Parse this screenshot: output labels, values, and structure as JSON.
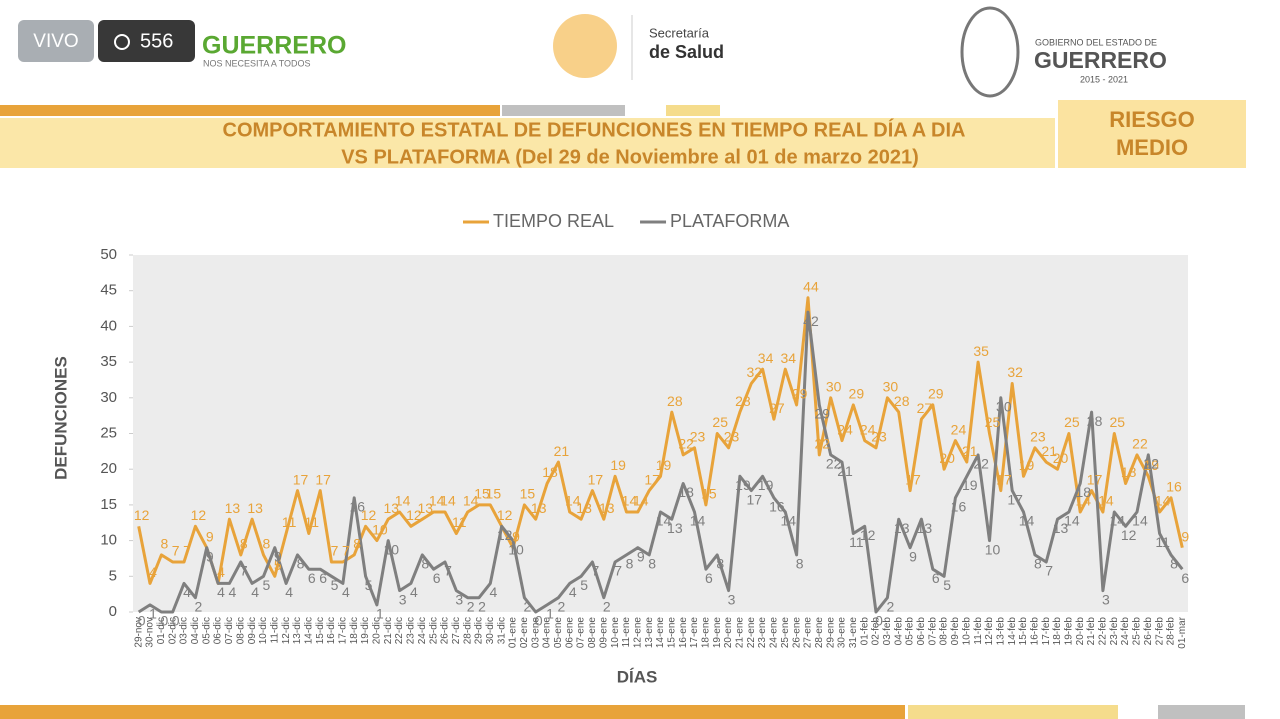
{
  "header": {
    "live": "VIVO",
    "viewers": "556",
    "brand": "GUERRERO",
    "brand_sub": "NOS NECESITA A TODOS",
    "secretaria": "Secretaría",
    "salud": "de Salud",
    "gobierno": "GOBIERNO DEL ESTADO DE",
    "estado": "GUERRERO",
    "periodo": "2015 - 2021",
    "riesgo": [
      "RIESGO",
      "MEDIO"
    ]
  },
  "chart_data": {
    "type": "line",
    "title": [
      "COMPORTAMIENTO ESTATAL DE DEFUNCIONES EN TIEMPO REAL DÍA A DIA",
      "VS PLATAFORMA   (Del 29 de Noviembre al 01 de marzo 2021)"
    ],
    "x_label": "DÍAS",
    "y_label": "DEFUNCIONES",
    "categories": [
      "29-nov",
      "30-nov",
      "01-dic",
      "02-dic",
      "03-dic",
      "04-dic",
      "05-dic",
      "06-dic",
      "07-dic",
      "08-dic",
      "09-dic",
      "10-dic",
      "11-dic",
      "12-dic",
      "13-dic",
      "14-dic",
      "15-dic",
      "16-dic",
      "17-dic",
      "18-dic",
      "19-dic",
      "20-dic",
      "21-dic",
      "22-dic",
      "23-dic",
      "24-dic",
      "25-dic",
      "26-dic",
      "27-dic",
      "28-dic",
      "29-dic",
      "30-dic",
      "31-dic",
      "01-ene",
      "02-ene",
      "03-ene",
      "04-ene",
      "05-ene",
      "06-ene",
      "07-ene",
      "08-ene",
      "09-ene",
      "10-ene",
      "11-ene",
      "12-ene",
      "13-ene",
      "14-ene",
      "15-ene",
      "16-ene",
      "17-ene",
      "18-ene",
      "19-ene",
      "20-ene",
      "21-ene",
      "22-ene",
      "23-ene",
      "24-ene",
      "25-ene",
      "26-ene",
      "27-ene",
      "28-ene",
      "29-ene",
      "30-ene",
      "31-ene",
      "01-feb",
      "02-feb",
      "03-feb",
      "04-feb",
      "05-feb",
      "06-feb",
      "07-feb",
      "08-feb",
      "09-feb",
      "10-feb",
      "11-feb",
      "12-feb",
      "13-feb",
      "14-feb",
      "15-feb",
      "16-feb",
      "17-feb",
      "18-feb",
      "19-feb",
      "20-feb",
      "21-feb",
      "22-feb",
      "23-feb",
      "24-feb",
      "25-feb",
      "26-feb",
      "27-feb",
      "28-feb",
      "01-mar"
    ],
    "series": [
      {
        "name": "TIEMPO REAL",
        "color": "#e8a33a",
        "values": [
          12,
          4,
          8,
          7,
          7,
          12,
          9,
          4,
          13,
          8,
          13,
          8,
          5,
          11,
          17,
          11,
          17,
          7,
          7,
          8,
          12,
          10,
          13,
          14,
          12,
          13,
          14,
          14,
          11,
          14,
          15,
          15,
          12,
          9,
          15,
          13,
          18,
          21,
          14,
          13,
          17,
          13,
          19,
          14,
          14,
          17,
          19,
          28,
          22,
          23,
          15,
          25,
          23,
          28,
          32,
          34,
          27,
          34,
          29,
          44,
          22,
          30,
          24,
          29,
          24,
          23,
          30,
          28,
          17,
          27,
          29,
          20,
          24,
          21,
          35,
          25,
          17,
          32,
          19,
          23,
          21,
          20,
          25,
          14,
          17,
          14,
          25,
          18,
          22,
          19,
          14,
          16,
          9
        ]
      },
      {
        "name": "PLATAFORMA",
        "color": "#7f7f7f",
        "values": [
          0,
          1,
          0,
          0,
          4,
          2,
          9,
          4,
          4,
          7,
          4,
          5,
          9,
          4,
          8,
          6,
          6,
          5,
          4,
          16,
          5,
          1,
          10,
          3,
          4,
          8,
          6,
          7,
          3,
          2,
          2,
          4,
          12,
          10,
          2,
          0,
          1,
          2,
          4,
          5,
          7,
          2,
          7,
          8,
          9,
          8,
          14,
          13,
          18,
          14,
          6,
          8,
          3,
          19,
          17,
          19,
          16,
          14,
          8,
          42,
          29,
          22,
          21,
          11,
          12,
          0,
          2,
          13,
          9,
          13,
          6,
          5,
          16,
          19,
          22,
          10,
          30,
          17,
          14,
          8,
          7,
          13,
          14,
          18,
          28,
          3,
          14,
          12,
          14,
          22,
          11,
          8,
          6
        ]
      }
    ],
    "ylim": [
      0,
      50
    ],
    "yticks": [
      0,
      5,
      10,
      15,
      20,
      25,
      30,
      35,
      40,
      45,
      50
    ],
    "grid": false,
    "legend": "top"
  }
}
